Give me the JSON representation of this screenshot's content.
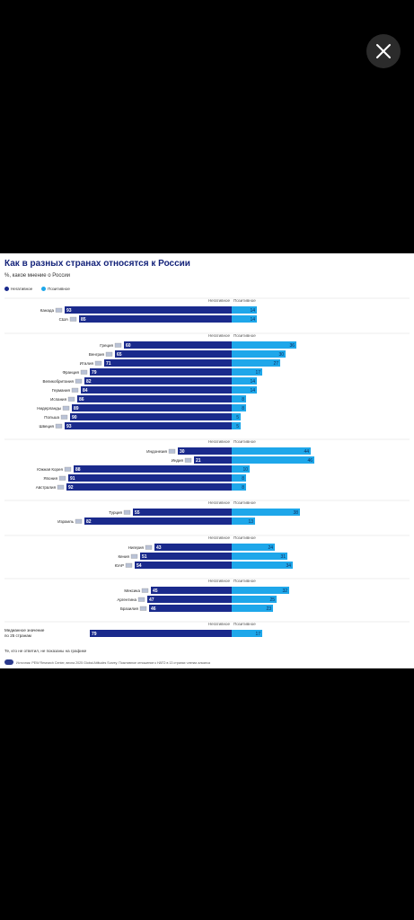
{
  "app": {
    "close_icon": "close-icon"
  },
  "chart_data": {
    "type": "bar",
    "title": "Как в разных странах относятся к России",
    "subtitle": "%, какое мнение о России",
    "legend": [
      "Негативное",
      "Позитивное"
    ],
    "column_headers": {
      "negative": "Негативное",
      "positive": "Позитивное"
    },
    "colors": {
      "negative": "#1a2a8c",
      "positive": "#1ea7ea"
    },
    "groups": [
      {
        "rows": [
          {
            "country": "Канада",
            "negative": 93,
            "positive": 14
          },
          {
            "country": "США",
            "negative": 85,
            "positive": 14
          }
        ]
      },
      {
        "rows": [
          {
            "country": "Греция",
            "negative": 60,
            "positive": 36
          },
          {
            "country": "Венгрия",
            "negative": 65,
            "positive": 30
          },
          {
            "country": "Италия",
            "negative": 71,
            "positive": 27
          },
          {
            "country": "Франция",
            "negative": 79,
            "positive": 17
          },
          {
            "country": "Великобритания",
            "negative": 82,
            "positive": 14
          },
          {
            "country": "Германия",
            "negative": 84,
            "positive": 14
          },
          {
            "country": "Испания",
            "negative": 86,
            "positive": 8
          },
          {
            "country": "Нидерланды",
            "negative": 89,
            "positive": 8
          },
          {
            "country": "Польша",
            "negative": 90,
            "positive": 5
          },
          {
            "country": "Швеция",
            "negative": 93,
            "positive": 5
          }
        ]
      },
      {
        "rows": [
          {
            "country": "Индонезия",
            "negative": 30,
            "positive": 44
          },
          {
            "country": "Индия",
            "negative": 21,
            "positive": 46
          },
          {
            "country": "Южная Корея",
            "negative": 88,
            "positive": 10
          },
          {
            "country": "Япония",
            "negative": 91,
            "positive": 8
          },
          {
            "country": "Австралия",
            "negative": 92,
            "positive": 8
          }
        ]
      },
      {
        "rows": [
          {
            "country": "Турция",
            "negative": 55,
            "positive": 38
          },
          {
            "country": "Израиль",
            "negative": 82,
            "positive": 13
          }
        ]
      },
      {
        "rows": [
          {
            "country": "Нигерия",
            "negative": 43,
            "positive": 24
          },
          {
            "country": "Кения",
            "negative": 51,
            "positive": 31
          },
          {
            "country": "ЮАР",
            "negative": 54,
            "positive": 34
          }
        ]
      },
      {
        "rows": [
          {
            "country": "Мексика",
            "negative": 45,
            "positive": 32
          },
          {
            "country": "Аргентина",
            "negative": 47,
            "positive": 25
          },
          {
            "country": "Бразилия",
            "negative": 46,
            "positive": 23
          }
        ]
      },
      {
        "rows": [
          {
            "country": "Медианное значение по 25 странам",
            "negative": 79,
            "positive": 17
          }
        ]
      }
    ]
  },
  "footnote": "Те, кто не ответил, не показаны на графике",
  "source": "Источник: PEW Research Center, весна 2025 Global Attitudes Survey. Позитивное отношение к НАТО в 13 странах членах альянса"
}
